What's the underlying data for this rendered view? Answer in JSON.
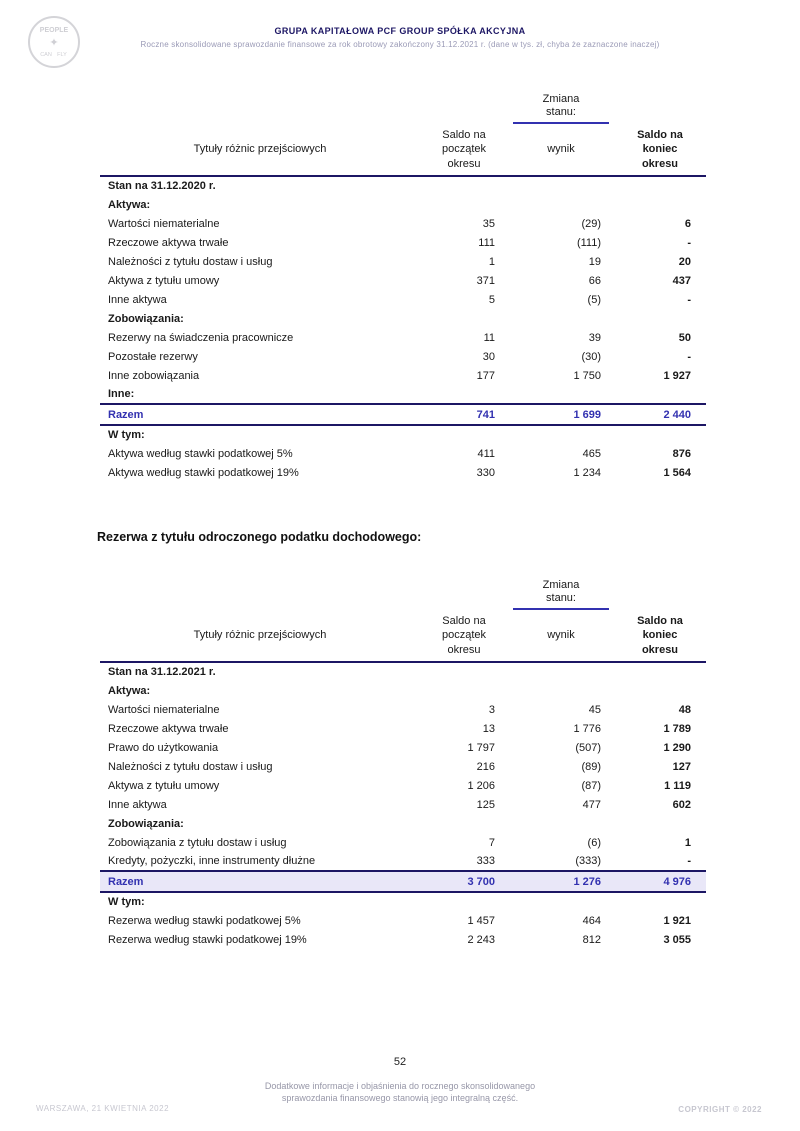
{
  "colors": {
    "navy": "#1c1664",
    "blue": "#3231b0",
    "highlight": "#e9e7f8",
    "gray": "#9797a8",
    "lightgray": "#c7c7d0",
    "text": "#1a1a1a"
  },
  "logo": {
    "line1": "PEOPLE",
    "line2": "CAN",
    "line3": "FLY"
  },
  "header": {
    "title": "GRUPA KAPITAŁOWA PCF GROUP SPÓŁKA AKCYJNA",
    "subtitle": "Roczne skonsolidowane sprawozdanie finansowe za rok obrotowy zakończony 31.12.2021 r. (dane w tys. zł, chyba że zaznaczone inaczej)"
  },
  "table_headers": {
    "change_line1": "Zmiana",
    "change_line2": "stanu:",
    "col_label": "Tytuły różnic przejściowych",
    "col_opening": "Saldo na początek okresu",
    "col_result": "wynik",
    "col_closing": "Saldo na koniec okresu"
  },
  "table1": {
    "rows": [
      {
        "type": "section",
        "label": "Stan na 31.12.2020 r."
      },
      {
        "type": "section",
        "label": "Aktywa:"
      },
      {
        "type": "data",
        "label": "Wartości niematerialne",
        "values": [
          "35",
          "(29)",
          "6"
        ]
      },
      {
        "type": "data",
        "label": "Rzeczowe aktywa trwałe",
        "values": [
          "111",
          "(111)",
          "-"
        ]
      },
      {
        "type": "data",
        "label": "Należności z tytułu dostaw i usług",
        "values": [
          "1",
          "19",
          "20"
        ]
      },
      {
        "type": "data",
        "label": "Aktywa z tytułu umowy",
        "values": [
          "371",
          "66",
          "437"
        ]
      },
      {
        "type": "data",
        "label": "Inne aktywa",
        "values": [
          "5",
          "(5)",
          "-"
        ]
      },
      {
        "type": "section",
        "label": "Zobowiązania:"
      },
      {
        "type": "data",
        "label": "Rezerwy na świadczenia pracownicze",
        "values": [
          "11",
          "39",
          "50"
        ]
      },
      {
        "type": "data",
        "label": "Pozostałe rezerwy",
        "values": [
          "30",
          "(30)",
          "-"
        ]
      },
      {
        "type": "data",
        "label": "Inne zobowiązania",
        "values": [
          "177",
          "1 750",
          "1 927"
        ]
      },
      {
        "type": "section",
        "label": "Inne:"
      },
      {
        "type": "total",
        "label": "Razem",
        "values": [
          "741",
          "1 699",
          "2 440"
        ]
      },
      {
        "type": "section",
        "label": "W tym:"
      },
      {
        "type": "data",
        "label": "Aktywa według stawki podatkowej 5%",
        "values": [
          "411",
          "465",
          "876"
        ]
      },
      {
        "type": "data",
        "label": "Aktywa według stawki podatkowej 19%",
        "values": [
          "330",
          "1 234",
          "1 564"
        ]
      }
    ]
  },
  "section_title": "Rezerwa z tytułu odroczonego podatku dochodowego:",
  "table2": {
    "rows": [
      {
        "type": "section",
        "label": "Stan na 31.12.2021 r."
      },
      {
        "type": "section",
        "label": "Aktywa:"
      },
      {
        "type": "data",
        "label": "Wartości niematerialne",
        "values": [
          "3",
          "45",
          "48"
        ]
      },
      {
        "type": "data",
        "label": "Rzeczowe aktywa trwałe",
        "values": [
          "13",
          "1 776",
          "1 789"
        ]
      },
      {
        "type": "data",
        "label": "Prawo do użytkowania",
        "values": [
          "1 797",
          "(507)",
          "1 290"
        ]
      },
      {
        "type": "data",
        "label": "Należności z tytułu dostaw i usług",
        "values": [
          "216",
          "(89)",
          "127"
        ]
      },
      {
        "type": "data",
        "label": "Aktywa z tytułu umowy",
        "values": [
          "1 206",
          "(87)",
          "1 119"
        ]
      },
      {
        "type": "data",
        "label": "Inne aktywa",
        "values": [
          "125",
          "477",
          "602"
        ]
      },
      {
        "type": "section",
        "label": "Zobowiązania:"
      },
      {
        "type": "data",
        "label": "Zobowiązania z tytułu dostaw i usług",
        "values": [
          "7",
          "(6)",
          "1"
        ]
      },
      {
        "type": "data",
        "label": "Kredyty, pożyczki, inne instrumenty dłużne",
        "values": [
          "333",
          "(333)",
          "-"
        ]
      },
      {
        "type": "total",
        "label": "Razem",
        "highlighted": true,
        "values": [
          "3 700",
          "1 276",
          "4 976"
        ]
      },
      {
        "type": "section",
        "label": "W tym:"
      },
      {
        "type": "data",
        "label": "Rezerwa według stawki podatkowej 5%",
        "values": [
          "1 457",
          "464",
          "1 921"
        ]
      },
      {
        "type": "data",
        "label": "Rezerwa według stawki podatkowej 19%",
        "values": [
          "2 243",
          "812",
          "3 055"
        ]
      }
    ]
  },
  "footer": {
    "page_number": "52",
    "note_line1": "Dodatkowe informacje i objaśnienia do rocznego skonsolidowanego",
    "note_line2": "sprawozdania finansowego stanowią jego integralną część.",
    "place_date": "WARSZAWA, 21 KWIETNIA 2022",
    "copyright": "COPYRIGHT © 2022"
  }
}
